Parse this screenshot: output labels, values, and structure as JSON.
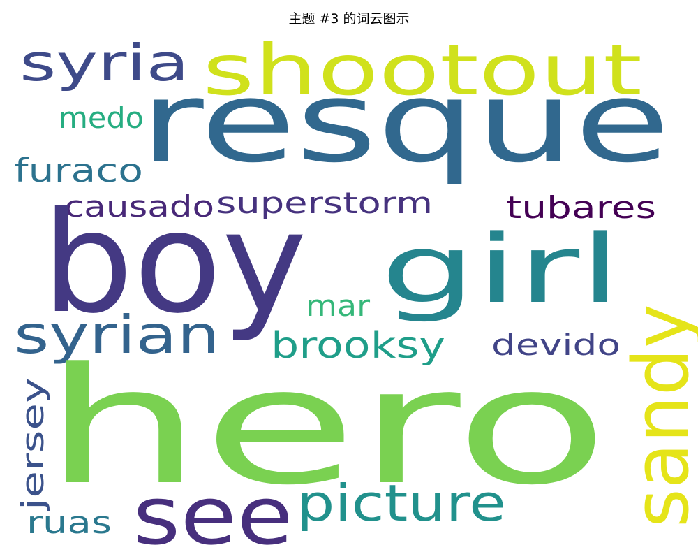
{
  "title": "主题 #3 的词云图示",
  "words": [
    {
      "text": "resque",
      "color": "#31688e"
    },
    {
      "text": "shootout",
      "color": "#d0e11c"
    },
    {
      "text": "syria",
      "color": "#3e4a89"
    },
    {
      "text": "medo",
      "color": "#26ad81"
    },
    {
      "text": "furaco",
      "color": "#2c728e"
    },
    {
      "text": "causado",
      "color": "#482878"
    },
    {
      "text": "superstorm",
      "color": "#46327e"
    },
    {
      "text": "tubares",
      "color": "#440154"
    },
    {
      "text": "boy",
      "color": "#443983"
    },
    {
      "text": "girl",
      "color": "#25858e"
    },
    {
      "text": "syrian",
      "color": "#33638d"
    },
    {
      "text": "mar",
      "color": "#35b779"
    },
    {
      "text": "brooksy",
      "color": "#1f9e89"
    },
    {
      "text": "devido",
      "color": "#414487"
    },
    {
      "text": "hero",
      "color": "#7ad151"
    },
    {
      "text": "sandy",
      "color": "#e5e419"
    },
    {
      "text": "jersey",
      "color": "#3b528b"
    },
    {
      "text": "see",
      "color": "#472f7d"
    },
    {
      "text": "picture",
      "color": "#21918c"
    },
    {
      "text": "ruas",
      "color": "#2a788e"
    }
  ]
}
